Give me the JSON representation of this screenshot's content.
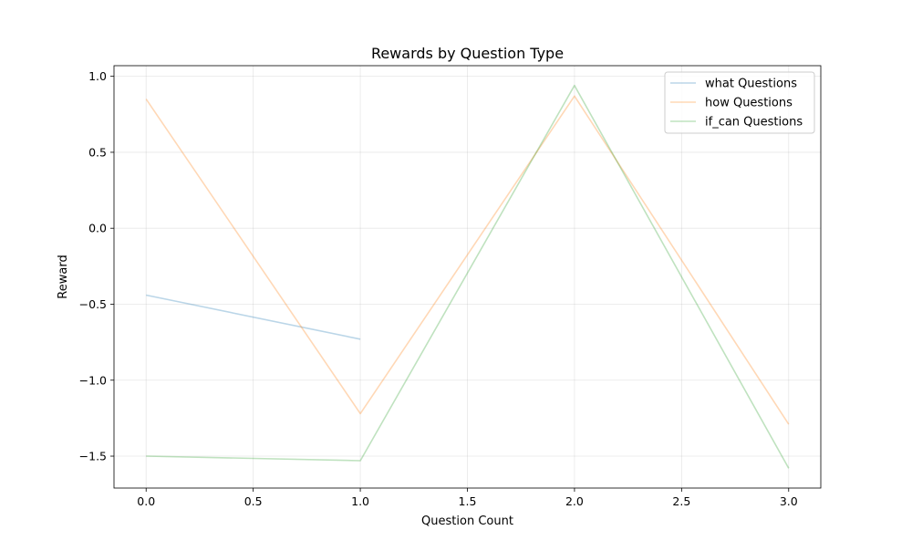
{
  "chart_data": {
    "type": "line",
    "title": "Rewards by Question Type",
    "xlabel": "Question Count",
    "ylabel": "Reward",
    "xlim": [
      -0.15,
      3.15
    ],
    "ylim": [
      -1.71,
      1.07
    ],
    "x_ticks": [
      0.0,
      0.5,
      1.0,
      1.5,
      2.0,
      2.5,
      3.0
    ],
    "x_tick_labels": [
      "0.0",
      "0.5",
      "1.0",
      "1.5",
      "2.0",
      "2.5",
      "3.0"
    ],
    "y_ticks": [
      1.0,
      0.5,
      0.0,
      -0.5,
      -1.0,
      -1.5
    ],
    "y_tick_labels": [
      "1.0",
      "0.5",
      "0.0",
      "−0.5",
      "−1.0",
      "−1.5"
    ],
    "grid": true,
    "legend_position": "top-right",
    "series": [
      {
        "name": "what Questions",
        "color": "#1f77b4",
        "x": [
          0,
          1
        ],
        "y": [
          -0.44,
          -0.73
        ]
      },
      {
        "name": "how Questions",
        "color": "#ff7f0e",
        "x": [
          0,
          1,
          2,
          3
        ],
        "y": [
          0.85,
          -1.22,
          0.87,
          -1.29
        ]
      },
      {
        "name": "if_can Questions",
        "color": "#2ca02c",
        "x": [
          0,
          1,
          2,
          3
        ],
        "y": [
          -1.5,
          -1.53,
          0.94,
          -1.58
        ]
      }
    ]
  }
}
